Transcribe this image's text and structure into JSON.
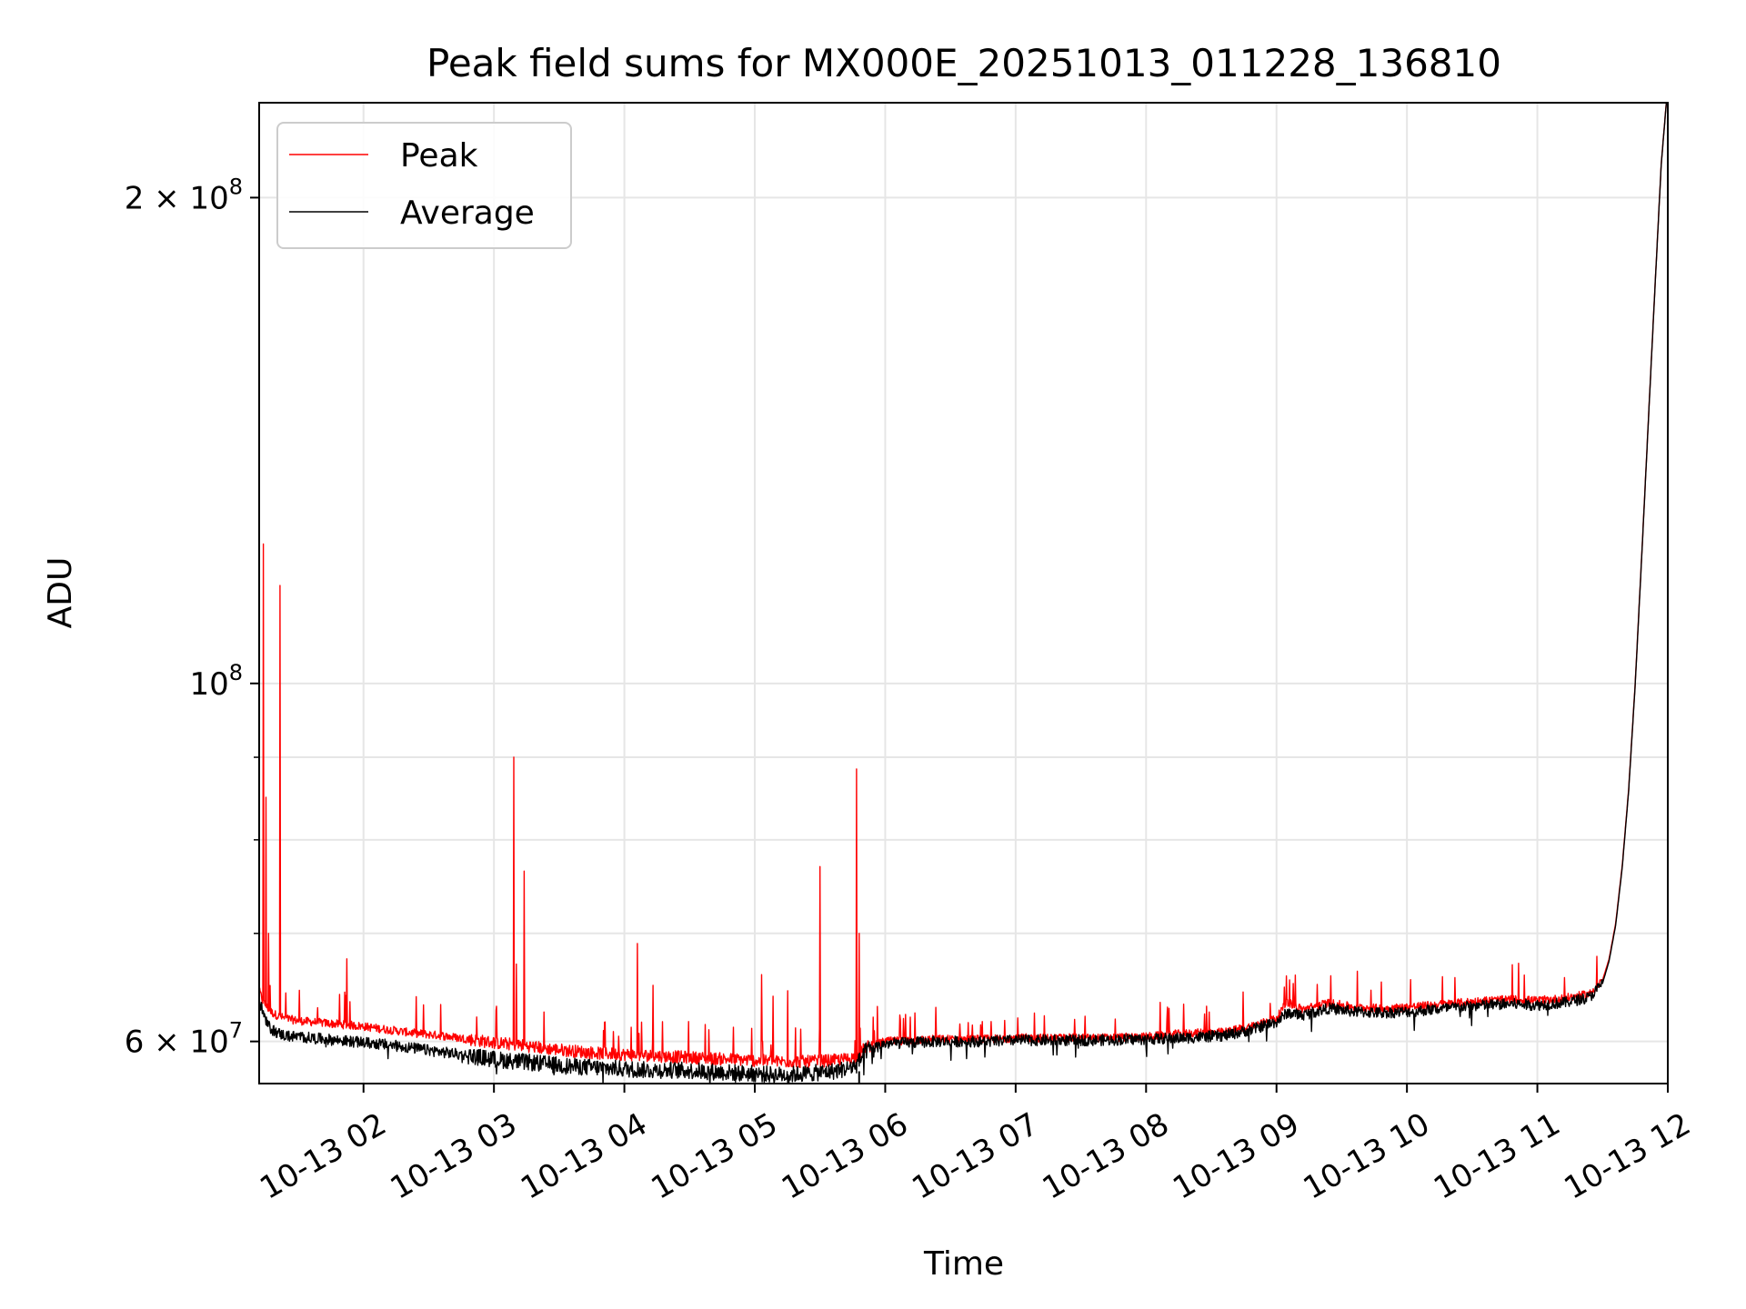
{
  "chart_data": {
    "type": "line",
    "title": "Peak field sums for MX000E_20251013_011228_136810",
    "xlabel": "Time",
    "ylabel": "ADU",
    "yscale": "log",
    "grid": true,
    "legend_position": "top-left",
    "xlim_hours": [
      1.2,
      12.0
    ],
    "ylim": [
      56500000,
      229000000
    ],
    "x_ticks": [
      {
        "hour": 2,
        "label": "10-13 02"
      },
      {
        "hour": 3,
        "label": "10-13 03"
      },
      {
        "hour": 4,
        "label": "10-13 04"
      },
      {
        "hour": 5,
        "label": "10-13 05"
      },
      {
        "hour": 6,
        "label": "10-13 06"
      },
      {
        "hour": 7,
        "label": "10-13 07"
      },
      {
        "hour": 8,
        "label": "10-13 08"
      },
      {
        "hour": 9,
        "label": "10-13 09"
      },
      {
        "hour": 10,
        "label": "10-13 10"
      },
      {
        "hour": 11,
        "label": "10-13 11"
      },
      {
        "hour": 12,
        "label": "10-13 12"
      }
    ],
    "y_major_ticks": [
      {
        "value": 60000000,
        "base": "6 × 10",
        "exp": "7"
      },
      {
        "value": 100000000,
        "base": "10",
        "exp": "8"
      },
      {
        "value": 200000000,
        "base": "2 × 10",
        "exp": "8"
      }
    ],
    "y_minor_ticks": [
      70000000,
      80000000,
      90000000
    ],
    "series": [
      {
        "name": "Peak",
        "color": "#ff0000",
        "x_hours": [
          1.2,
          1.23,
          1.26,
          1.3,
          1.35,
          1.4,
          1.5,
          1.6,
          1.7,
          1.8,
          1.9,
          2.0,
          2.2,
          2.4,
          2.6,
          2.8,
          3.0,
          3.2,
          3.4,
          3.6,
          3.8,
          4.0,
          4.2,
          4.4,
          4.6,
          4.8,
          5.0,
          5.2,
          5.4,
          5.6,
          5.7,
          5.78,
          5.85,
          6.0,
          6.2,
          6.4,
          6.6,
          6.8,
          7.0,
          7.3,
          7.6,
          8.0,
          8.3,
          8.6,
          8.8,
          9.0,
          9.08,
          9.2,
          9.4,
          9.6,
          9.8,
          10.0,
          10.2,
          10.4,
          10.6,
          10.8,
          11.0,
          11.2,
          11.4,
          11.5,
          11.55,
          11.6,
          11.65,
          11.7,
          11.75,
          11.8,
          11.85,
          11.9,
          11.95,
          12.0
        ],
        "y": [
          64500000,
          63500000,
          63000000,
          62500000,
          62200000,
          62000000,
          61800000,
          61700000,
          61600000,
          61500000,
          61400000,
          61300000,
          61000000,
          60700000,
          60500000,
          60200000,
          59900000,
          59700000,
          59400000,
          59200000,
          59000000,
          58900000,
          58800000,
          58700000,
          58600000,
          58500000,
          58400000,
          58300000,
          58300000,
          58400000,
          58500000,
          58700000,
          59500000,
          60000000,
          60100000,
          60200000,
          60200000,
          60200000,
          60300000,
          60300000,
          60300000,
          60400000,
          60700000,
          60800000,
          61300000,
          62000000,
          63500000,
          62800000,
          63400000,
          63000000,
          62900000,
          63000000,
          63200000,
          63400000,
          63600000,
          63700000,
          63600000,
          63800000,
          64200000,
          65500000,
          67500000,
          71000000,
          77000000,
          86000000,
          100000000,
          120000000,
          145000000,
          175000000,
          210000000,
          235000000
        ],
        "spikes": [
          {
            "hour": 1.23,
            "value": 122000000
          },
          {
            "hour": 1.25,
            "value": 85000000
          },
          {
            "hour": 1.27,
            "value": 70000000
          },
          {
            "hour": 1.36,
            "value": 115000000
          },
          {
            "hour": 1.87,
            "value": 67500000
          },
          {
            "hour": 3.15,
            "value": 90000000
          },
          {
            "hour": 3.17,
            "value": 67000000
          },
          {
            "hour": 3.23,
            "value": 76500000
          },
          {
            "hour": 4.1,
            "value": 69000000
          },
          {
            "hour": 4.22,
            "value": 65000000
          },
          {
            "hour": 5.05,
            "value": 66000000
          },
          {
            "hour": 5.14,
            "value": 64000000
          },
          {
            "hour": 5.25,
            "value": 64500000
          },
          {
            "hour": 5.5,
            "value": 77000000
          },
          {
            "hour": 5.78,
            "value": 88500000
          },
          {
            "hour": 5.8,
            "value": 70000000
          },
          {
            "hour": 9.1,
            "value": 65500000
          }
        ]
      },
      {
        "name": "Average",
        "color": "#000000",
        "x_hours": [
          1.2,
          1.23,
          1.26,
          1.3,
          1.35,
          1.4,
          1.5,
          1.6,
          1.7,
          1.8,
          1.9,
          2.0,
          2.2,
          2.4,
          2.6,
          2.8,
          3.0,
          3.2,
          3.4,
          3.6,
          3.8,
          4.0,
          4.2,
          4.4,
          4.6,
          4.8,
          5.0,
          5.2,
          5.4,
          5.6,
          5.7,
          5.78,
          5.85,
          6.0,
          6.2,
          6.4,
          6.6,
          6.8,
          7.0,
          7.3,
          7.6,
          8.0,
          8.3,
          8.6,
          8.8,
          9.0,
          9.08,
          9.2,
          9.4,
          9.6,
          9.8,
          10.0,
          10.2,
          10.4,
          10.6,
          10.8,
          11.0,
          11.2,
          11.4,
          11.5,
          11.55,
          11.6,
          11.65,
          11.7,
          11.75,
          11.8,
          11.85,
          11.9,
          11.95,
          12.0
        ],
        "y": [
          63500000,
          62500000,
          61500000,
          61000000,
          60700000,
          60500000,
          60400000,
          60300000,
          60200000,
          60100000,
          60000000,
          59900000,
          59700000,
          59400000,
          59100000,
          58800000,
          58500000,
          58300000,
          58100000,
          57900000,
          57800000,
          57700000,
          57600000,
          57600000,
          57500000,
          57400000,
          57300000,
          57200000,
          57300000,
          57500000,
          57700000,
          58000000,
          59200000,
          59800000,
          59900000,
          60000000,
          60000000,
          60000000,
          60100000,
          60100000,
          60100000,
          60200000,
          60300000,
          60500000,
          61000000,
          61700000,
          62500000,
          62300000,
          62900000,
          62600000,
          62500000,
          62600000,
          62800000,
          63000000,
          63200000,
          63300000,
          63200000,
          63400000,
          63900000,
          65200000,
          67300000,
          70800000,
          76800000,
          85800000,
          99800000,
          119800000,
          144800000,
          174800000,
          209800000,
          234800000
        ]
      }
    ]
  }
}
